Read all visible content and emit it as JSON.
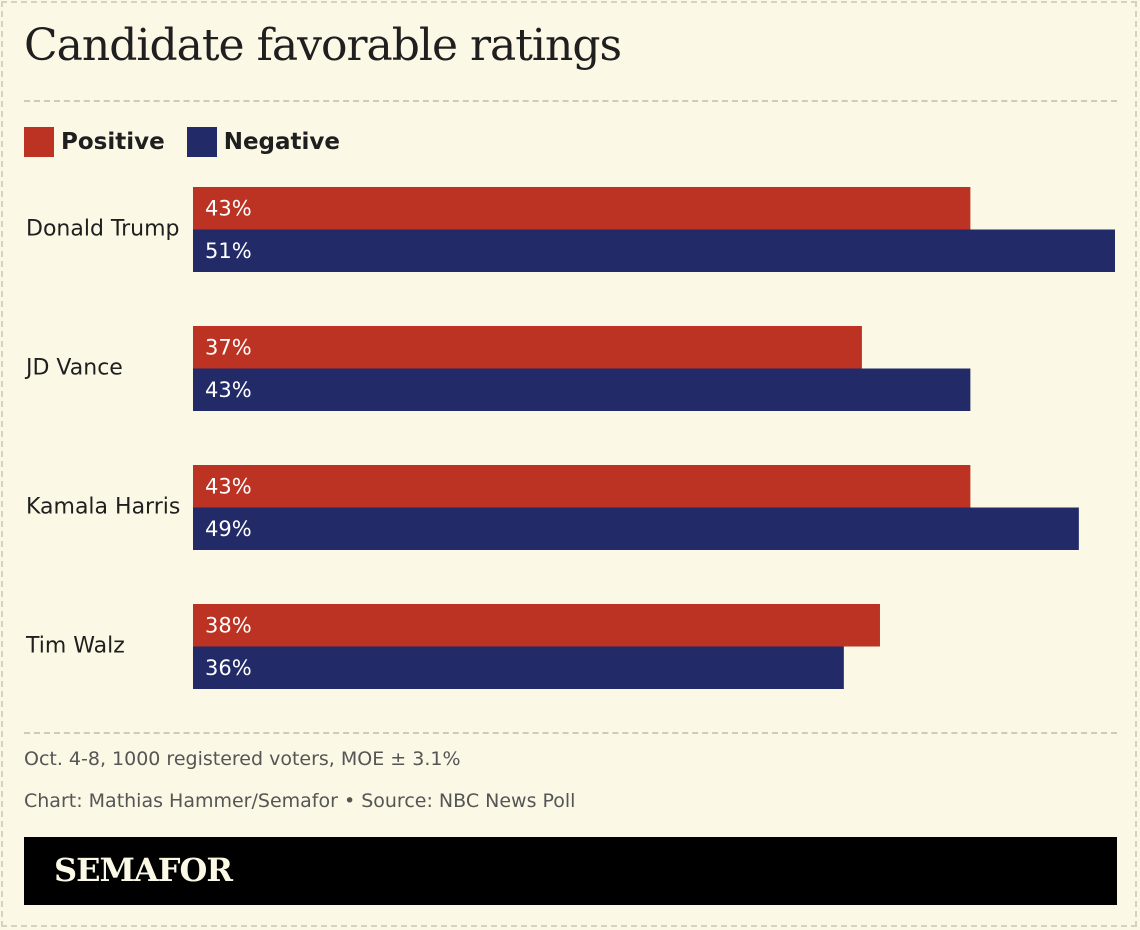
{
  "title": "Candidate favorable ratings",
  "legend": [
    {
      "label": "Positive",
      "color": "#bc3223"
    },
    {
      "label": "Negative",
      "color": "#222a68"
    }
  ],
  "chart_data": {
    "type": "bar",
    "orientation": "horizontal",
    "categories": [
      "Donald Trump",
      "JD Vance",
      "Kamala Harris",
      "Tim Walz"
    ],
    "series": [
      {
        "name": "Positive",
        "color": "#bc3223",
        "values": [
          43,
          37,
          43,
          38
        ],
        "labels": [
          "43%",
          "37%",
          "43%",
          "38%"
        ]
      },
      {
        "name": "Negative",
        "color": "#222a68",
        "values": [
          51,
          43,
          49,
          36
        ],
        "labels": [
          "51%",
          "43%",
          "49%",
          "36%"
        ]
      }
    ],
    "xlim": [
      0,
      51
    ],
    "grid": false,
    "legend_position": "top-left"
  },
  "footer": {
    "note": "Oct. 4-8, 1000 registered voters, MOE ± 3.1%",
    "credit": "Chart: Mathias Hammer/Semafor • Source: NBC News Poll"
  },
  "brand": "SEMAFOR"
}
